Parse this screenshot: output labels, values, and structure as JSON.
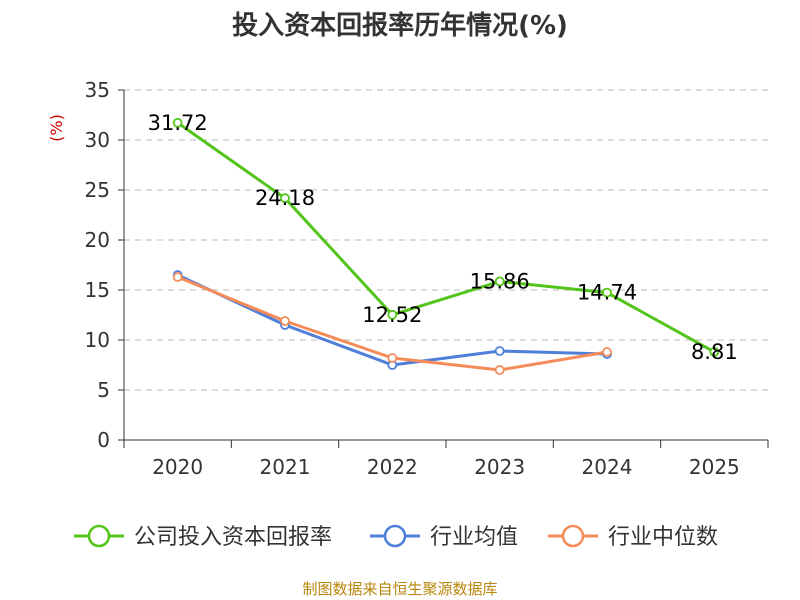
{
  "chart_data": {
    "type": "line",
    "title": "投入资本回报率历年情况(%)",
    "ylabel": "(%)",
    "xlabel": "",
    "categories": [
      "2020",
      "2021",
      "2022",
      "2023",
      "2024",
      "2025"
    ],
    "ylim": [
      0,
      35
    ],
    "yticks": [
      0,
      5,
      10,
      15,
      20,
      25,
      30,
      35
    ],
    "grid": true,
    "legend_position": "bottom",
    "series": [
      {
        "name": "公司投入资本回报率",
        "color": "#52c41a",
        "values": [
          31.72,
          24.18,
          12.52,
          15.86,
          14.74,
          8.81
        ],
        "labels": [
          "31.72",
          "24.18",
          "12.52",
          "15.86",
          "14.74",
          "8.81"
        ]
      },
      {
        "name": "行业均值",
        "color": "#4f7fd9",
        "values": [
          16.5,
          11.5,
          7.5,
          8.9,
          8.6,
          null
        ]
      },
      {
        "name": "行业中位数",
        "color": "#f68b5a",
        "values": [
          16.3,
          11.9,
          8.2,
          7.0,
          8.8,
          null
        ]
      }
    ],
    "source": "制图数据来自恒生聚源数据库"
  }
}
